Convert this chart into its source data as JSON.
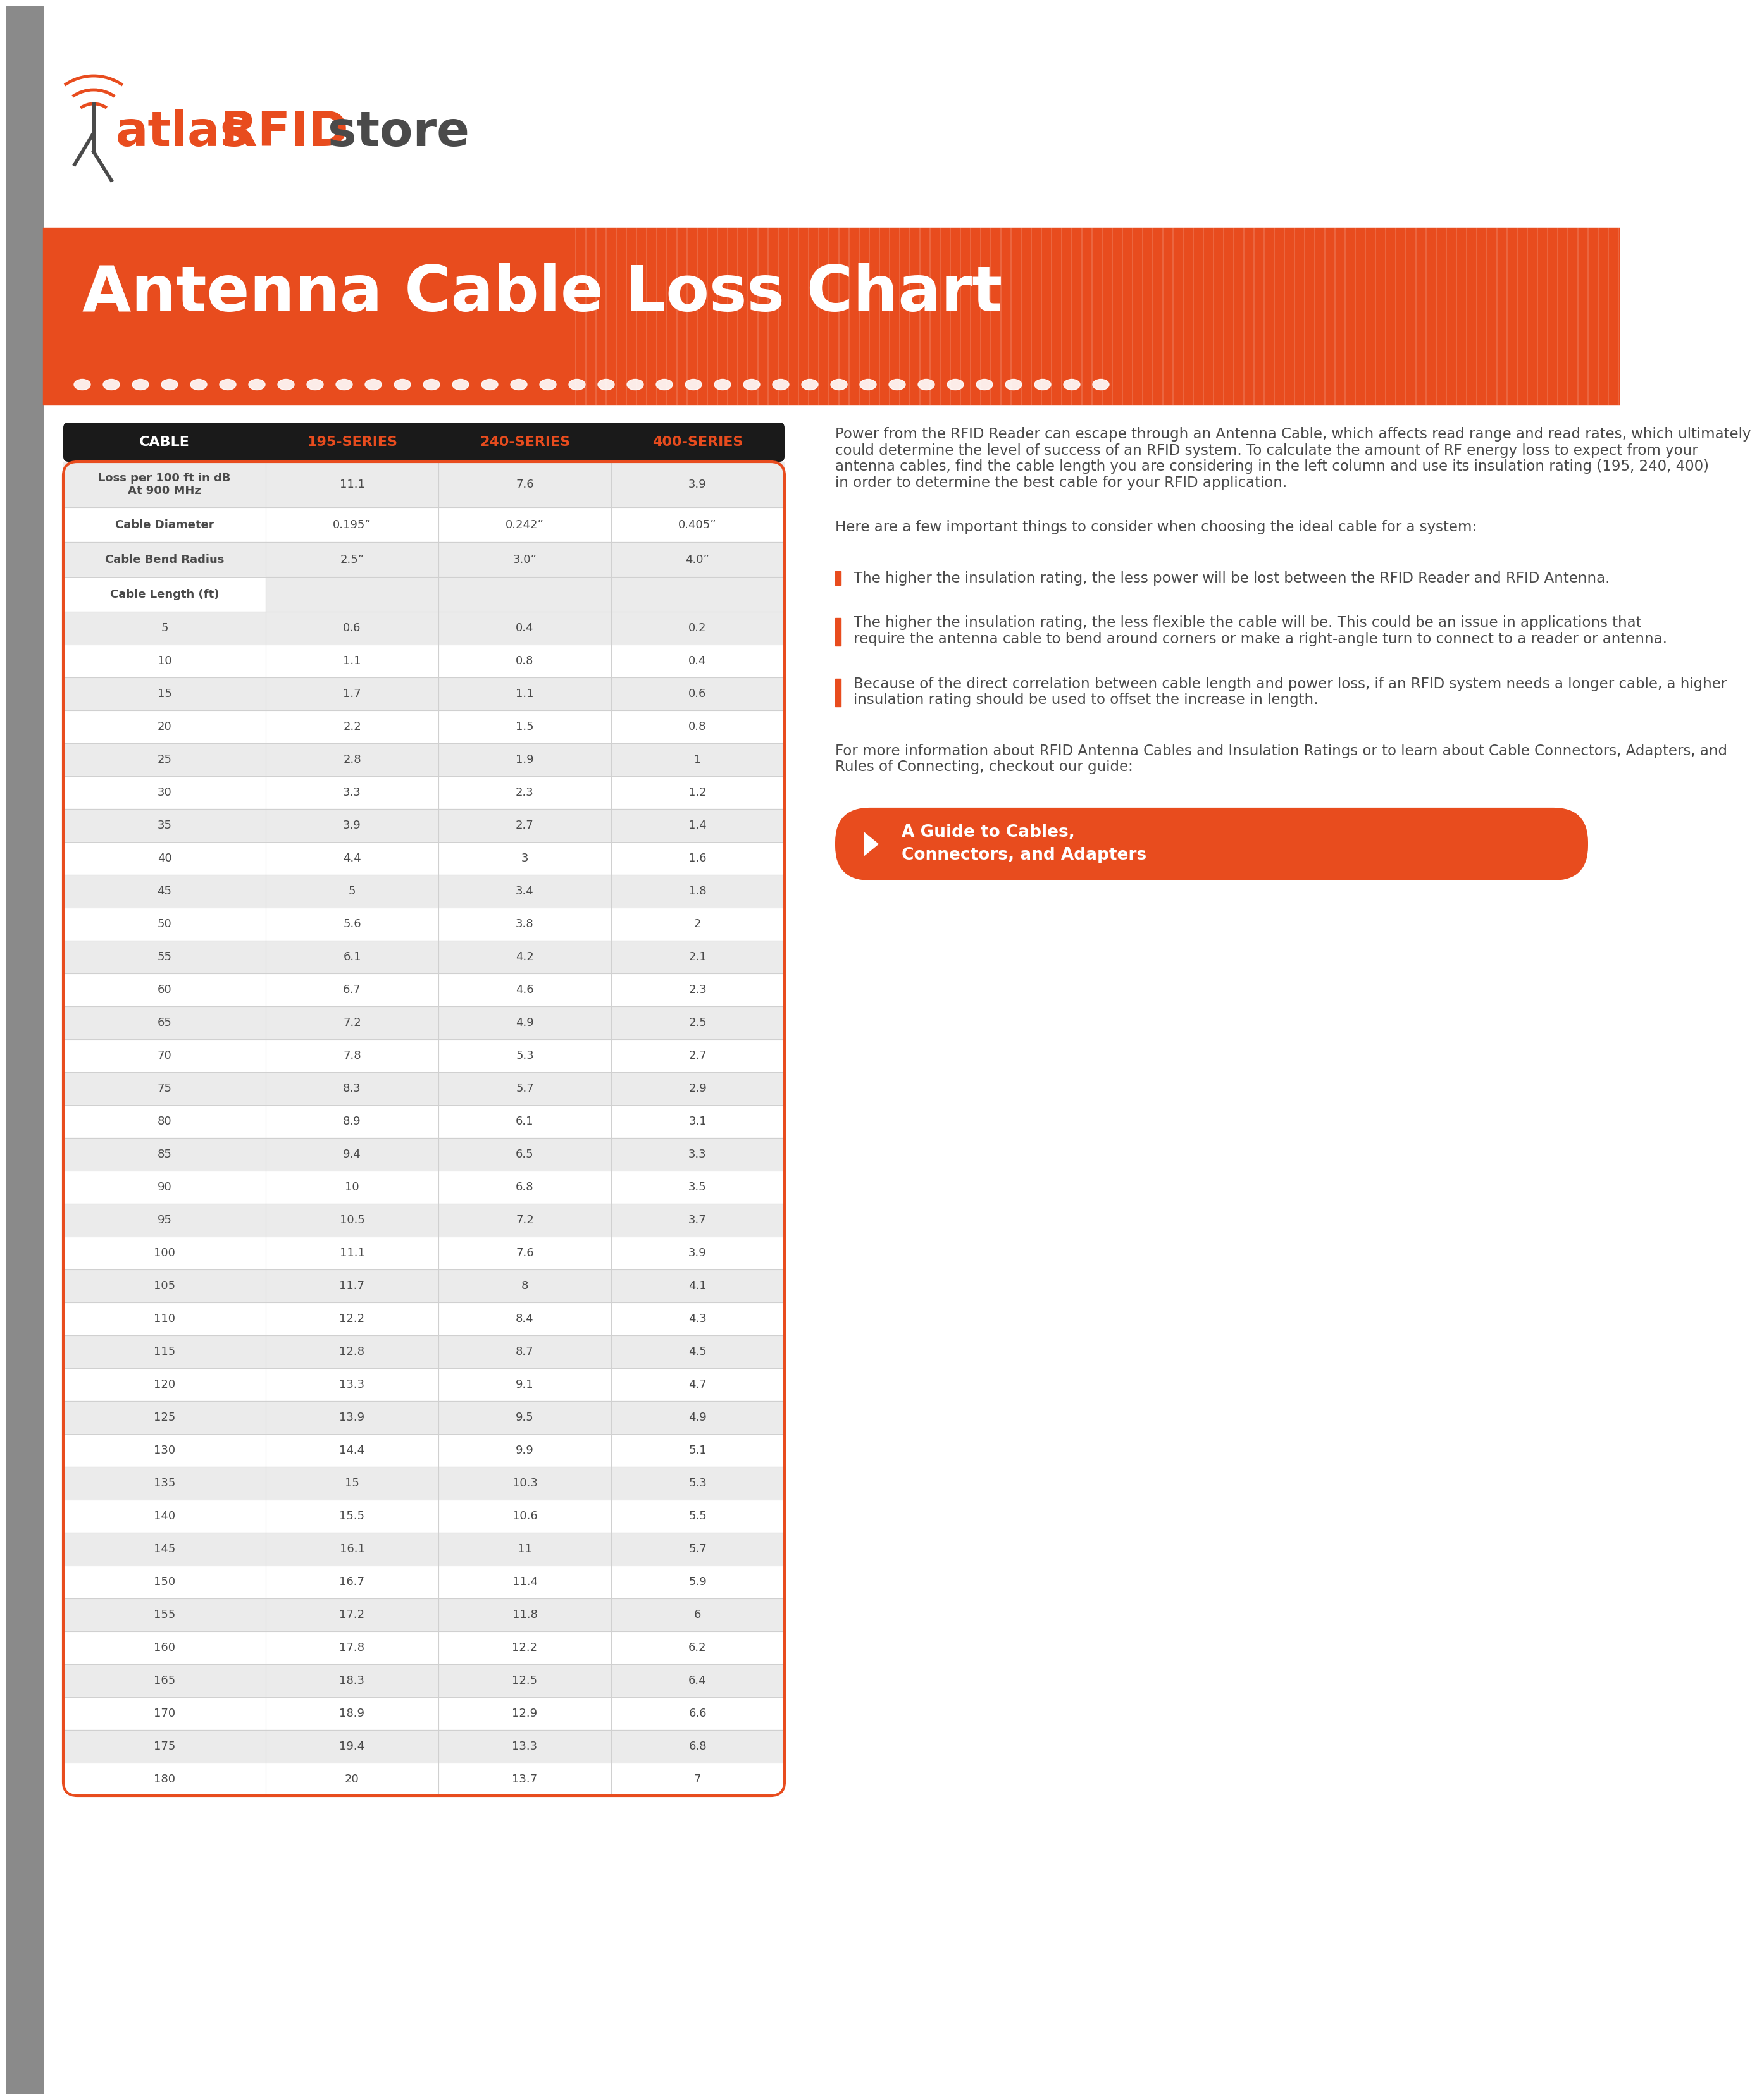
{
  "title": "Antenna Cable Loss Chart",
  "bg_color": "#ffffff",
  "orange": "#E84C1E",
  "dark_gray": "#4a4a4a",
  "light_gray": "#ebebeb",
  "mid_gray": "#d0d0d0",
  "header_bg": "#1a1a1a",
  "sidebar_color": "#8a8a8a",
  "col_headers": [
    "CABLE",
    "195-SERIES",
    "240-SERIES",
    "400-SERIES"
  ],
  "row_labels": [
    "Loss per 100 ft in dB\nAt 900 MHz",
    "Cable Diameter",
    "Cable Bend Radius",
    "Cable Length (ft)"
  ],
  "row_values": [
    [
      "11.1",
      "7.6",
      "3.9"
    ],
    [
      "0.195”",
      "0.242”",
      "0.405”"
    ],
    [
      "2.5”",
      "3.0”",
      "4.0”"
    ],
    [
      "",
      "",
      ""
    ]
  ],
  "data_rows": [
    [
      5,
      0.6,
      0.4,
      0.2
    ],
    [
      10,
      1.1,
      0.8,
      0.4
    ],
    [
      15,
      1.7,
      1.1,
      0.6
    ],
    [
      20,
      2.2,
      1.5,
      0.8
    ],
    [
      25,
      2.8,
      1.9,
      1.0
    ],
    [
      30,
      3.3,
      2.3,
      1.2
    ],
    [
      35,
      3.9,
      2.7,
      1.4
    ],
    [
      40,
      4.4,
      3.0,
      1.6
    ],
    [
      45,
      5.0,
      3.4,
      1.8
    ],
    [
      50,
      5.6,
      3.8,
      2.0
    ],
    [
      55,
      6.1,
      4.2,
      2.1
    ],
    [
      60,
      6.7,
      4.6,
      2.3
    ],
    [
      65,
      7.2,
      4.9,
      2.5
    ],
    [
      70,
      7.8,
      5.3,
      2.7
    ],
    [
      75,
      8.3,
      5.7,
      2.9
    ],
    [
      80,
      8.9,
      6.1,
      3.1
    ],
    [
      85,
      9.4,
      6.5,
      3.3
    ],
    [
      90,
      10.0,
      6.8,
      3.5
    ],
    [
      95,
      10.5,
      7.2,
      3.7
    ],
    [
      100,
      11.1,
      7.6,
      3.9
    ],
    [
      105,
      11.7,
      8.0,
      4.1
    ],
    [
      110,
      12.2,
      8.4,
      4.3
    ],
    [
      115,
      12.8,
      8.7,
      4.5
    ],
    [
      120,
      13.3,
      9.1,
      4.7
    ],
    [
      125,
      13.9,
      9.5,
      4.9
    ],
    [
      130,
      14.4,
      9.9,
      5.1
    ],
    [
      135,
      15.0,
      10.3,
      5.3
    ],
    [
      140,
      15.5,
      10.6,
      5.5
    ],
    [
      145,
      16.1,
      11.0,
      5.7
    ],
    [
      150,
      16.7,
      11.4,
      5.9
    ],
    [
      155,
      17.2,
      11.8,
      6.0
    ],
    [
      160,
      17.8,
      12.2,
      6.2
    ],
    [
      165,
      18.3,
      12.5,
      6.4
    ],
    [
      170,
      18.9,
      12.9,
      6.6
    ],
    [
      175,
      19.4,
      13.3,
      6.8
    ],
    [
      180,
      20.0,
      13.7,
      7.0
    ]
  ],
  "intro_text": "Power from the RFID Reader can escape through an Antenna Cable, which affects read range and read rates, which ultimately could determine the level of success of an RFID system.  To calculate the amount of RF energy loss to expect from your antenna cables, find the cable length you are considering in the left column and use its insulation rating (195, 240, 400) in order to determine the best cable for your RFID application.",
  "here_text": "Here are a few important things to consider when choosing the ideal cable for a system:",
  "quote1": "The higher the insulation rating, the less power will be lost between the RFID Reader and RFID Antenna.",
  "quote2": "The higher the insulation rating, the less flexible the cable will be. This could be an issue in applications that require the antenna cable to bend around corners or make a right-angle turn to connect to a reader or antenna.",
  "quote3": "Because of the direct correlation between cable length and power loss, if an RFID system needs a longer cable, a higher insulation rating should be used to offset the increase in length.",
  "footer_text": "For more information about RFID Antenna Cables and Insulation Ratings or to learn about Cable Connectors, Adapters, and Rules of Connecting, checkout our guide:",
  "button_text": "A Guide to Cables,\nConnectors, and Adapters"
}
